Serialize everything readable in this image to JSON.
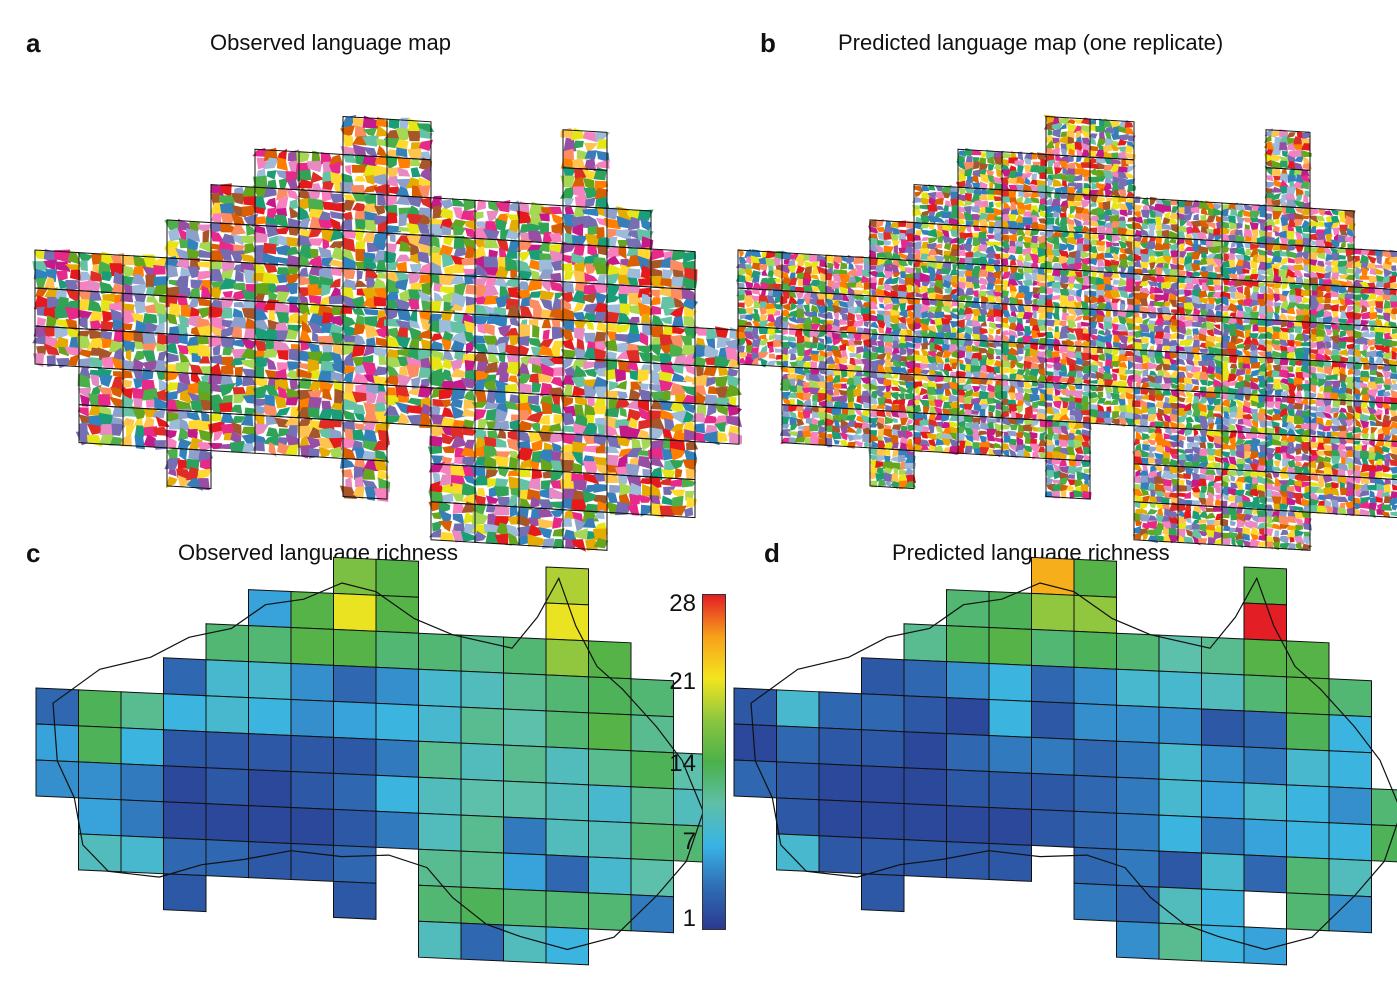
{
  "panels": [
    {
      "letter": "a",
      "title": "Observed language map",
      "kind": "languages",
      "seed": 11
    },
    {
      "letter": "b",
      "title": "Predicted language map (one replicate)",
      "kind": "languages",
      "seed": 29
    },
    {
      "letter": "c",
      "title": "Observed language richness",
      "kind": "richness",
      "seed": 3
    },
    {
      "letter": "d",
      "title": "Predicted language richness",
      "kind": "richness",
      "seed": 7
    }
  ],
  "legend": {
    "ticks": [
      "28",
      "21",
      "14",
      "7",
      "1"
    ],
    "min": 1,
    "max": 28,
    "colors": [
      "#2b3990",
      "#2f6db5",
      "#39b3e5",
      "#5ec0a8",
      "#4bb04a",
      "#8cc63f",
      "#f2e51f",
      "#f7a11a",
      "#e31e24"
    ]
  },
  "richness_observed": [
    [
      null,
      null,
      null,
      null,
      null,
      null,
      null,
      null,
      null,
      null,
      null,
      null,
      null,
      null,
      null,
      null
    ],
    [
      null,
      null,
      null,
      null,
      null,
      null,
      null,
      null,
      null,
      null,
      null,
      null,
      null,
      null,
      null,
      null
    ],
    [
      null,
      null,
      null,
      null,
      null,
      null,
      null,
      17,
      15,
      null,
      null,
      null,
      19,
      null,
      null,
      null
    ],
    [
      null,
      null,
      null,
      null,
      null,
      7,
      15,
      21,
      15,
      null,
      null,
      null,
      21,
      null,
      null,
      null
    ],
    [
      null,
      null,
      null,
      null,
      13,
      13,
      15,
      15,
      13,
      13,
      12,
      13,
      18,
      15,
      null,
      null
    ],
    [
      null,
      null,
      null,
      4,
      9,
      9,
      6,
      4,
      6,
      9,
      10,
      12,
      13,
      14,
      13,
      null
    ],
    [
      4,
      14,
      12,
      8,
      9,
      8,
      6,
      7,
      8,
      9,
      12,
      11,
      13,
      15,
      12,
      null
    ],
    [
      7,
      14,
      8,
      3,
      3,
      3,
      3,
      3,
      5,
      12,
      10,
      12,
      10,
      12,
      14,
      11
    ],
    [
      6,
      6,
      5,
      2,
      3,
      2,
      3,
      4,
      8,
      10,
      11,
      11,
      10,
      9,
      12,
      10
    ],
    [
      null,
      7,
      5,
      2,
      2,
      2,
      2,
      3,
      5,
      10,
      12,
      5,
      10,
      10,
      13,
      13
    ],
    [
      null,
      10,
      9,
      4,
      4,
      3,
      3,
      4,
      null,
      12,
      12,
      7,
      4,
      9,
      11,
      null
    ],
    [
      null,
      null,
      null,
      3,
      null,
      null,
      null,
      3,
      null,
      13,
      14,
      13,
      13,
      13,
      5,
      null
    ],
    [
      null,
      null,
      null,
      null,
      null,
      null,
      null,
      null,
      null,
      10,
      4,
      10,
      8,
      null,
      null,
      null
    ]
  ],
  "richness_predicted": [
    [
      null,
      null,
      null,
      null,
      null,
      null,
      null,
      null,
      null,
      null,
      null,
      null,
      null,
      null,
      null,
      null
    ],
    [
      null,
      null,
      null,
      null,
      null,
      null,
      null,
      null,
      null,
      null,
      null,
      null,
      null,
      null,
      null,
      null
    ],
    [
      null,
      null,
      null,
      null,
      null,
      null,
      null,
      24,
      15,
      null,
      null,
      null,
      15,
      null,
      null,
      null
    ],
    [
      null,
      null,
      null,
      null,
      null,
      13,
      14,
      18,
      18,
      null,
      null,
      null,
      28,
      null,
      null,
      null
    ],
    [
      null,
      null,
      null,
      null,
      12,
      14,
      15,
      13,
      14,
      13,
      11,
      12,
      15,
      15,
      null,
      null
    ],
    [
      null,
      null,
      null,
      3,
      4,
      6,
      8,
      4,
      6,
      9,
      9,
      10,
      13,
      15,
      13,
      null
    ],
    [
      3,
      9,
      4,
      4,
      3,
      2,
      8,
      3,
      6,
      6,
      6,
      3,
      4,
      14,
      8,
      null
    ],
    [
      2,
      4,
      3,
      3,
      2,
      4,
      5,
      5,
      4,
      5,
      9,
      6,
      5,
      9,
      8,
      null
    ],
    [
      4,
      3,
      2,
      2,
      2,
      3,
      3,
      3,
      4,
      5,
      9,
      7,
      9,
      8,
      6,
      13
    ],
    [
      null,
      3,
      2,
      2,
      2,
      2,
      2,
      3,
      4,
      5,
      8,
      5,
      7,
      8,
      8,
      14
    ],
    [
      null,
      9,
      3,
      3,
      3,
      3,
      3,
      null,
      4,
      5,
      3,
      9,
      4,
      13,
      10,
      null
    ],
    [
      null,
      null,
      null,
      3,
      null,
      null,
      null,
      null,
      5,
      4,
      10,
      8,
      null,
      13,
      6,
      null
    ],
    [
      null,
      null,
      null,
      null,
      null,
      null,
      null,
      null,
      null,
      6,
      12,
      8,
      7,
      null,
      null,
      null
    ]
  ]
}
